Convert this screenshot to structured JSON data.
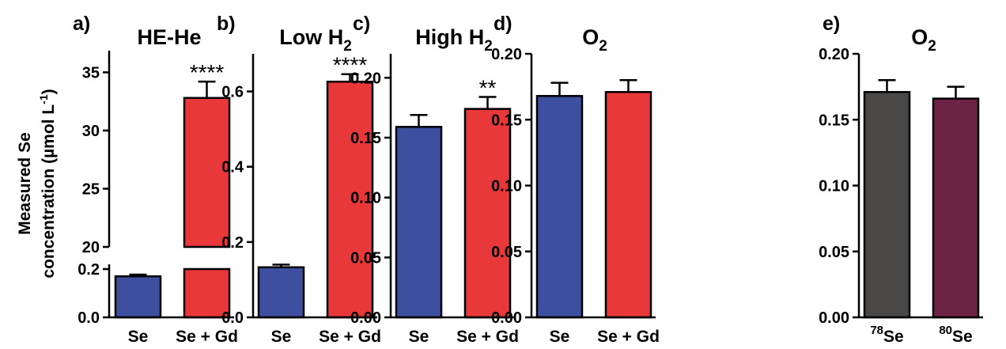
{
  "figure": {
    "ylabel_line1": "Measured Se",
    "ylabel_line2": "concentration (µmol L",
    "ylabel_exp": "-1",
    "ylabel_close": ")"
  },
  "colors": {
    "blue": "#3D4F9E",
    "red": "#E8383A",
    "dark_gray": "#4A4846",
    "maroon": "#6E2345"
  },
  "chart_data": [
    {
      "panel": "a)",
      "title": "HE-He",
      "type": "bar",
      "broken_axis": true,
      "lower_ylim": [
        0,
        0.2
      ],
      "upper_ylim": [
        20,
        37
      ],
      "lower_ticks": [
        "0.0",
        "0.2"
      ],
      "upper_ticks": [
        "20",
        "25",
        "30",
        "35"
      ],
      "categories": [
        "Se",
        "Se + Gd"
      ],
      "values": [
        0.17,
        32.8
      ],
      "errors": [
        0.007,
        1.4
      ],
      "colors": [
        "blue",
        "red"
      ],
      "significance": [
        "",
        "****"
      ]
    },
    {
      "panel": "b)",
      "title": "Low H",
      "title_sub": "2",
      "type": "bar",
      "ylim": [
        0,
        0.7
      ],
      "ticks": [
        "0.0",
        "0.2",
        "0.4",
        "0.6"
      ],
      "categories": [
        "Se",
        "Se + Gd"
      ],
      "values": [
        0.133,
        0.626
      ],
      "errors": [
        0.007,
        0.02
      ],
      "colors": [
        "blue",
        "red"
      ],
      "significance": [
        "",
        "****"
      ]
    },
    {
      "panel": "c)",
      "title": "High H",
      "title_sub": "2",
      "type": "bar",
      "ylim": [
        0,
        0.22
      ],
      "ticks": [
        "0.00",
        "0.05",
        "0.10",
        "0.15",
        "0.20"
      ],
      "categories": [
        "Se",
        "Se + Gd"
      ],
      "values": [
        0.159,
        0.174
      ],
      "errors": [
        0.01,
        0.01
      ],
      "colors": [
        "blue",
        "red"
      ],
      "significance": [
        "",
        "**"
      ]
    },
    {
      "panel": "d)",
      "title": "O",
      "title_sub": "2",
      "type": "bar",
      "ylim": [
        0,
        0.2
      ],
      "ticks": [
        "0.00",
        "0.05",
        "0.10",
        "0.15",
        "0.20"
      ],
      "categories": [
        "Se",
        "Se + Gd"
      ],
      "values": [
        0.168,
        0.171
      ],
      "errors": [
        0.01,
        0.009
      ],
      "colors": [
        "blue",
        "red"
      ],
      "significance": [
        "",
        ""
      ]
    },
    {
      "panel": "e)",
      "title": "O",
      "title_sub": "2",
      "type": "bar",
      "ylim": [
        0,
        0.2
      ],
      "ticks": [
        "0.00",
        "0.05",
        "0.10",
        "0.15",
        "0.20"
      ],
      "categories": [
        "Se",
        "Se"
      ],
      "category_sup": [
        "78",
        "80"
      ],
      "values": [
        0.171,
        0.166
      ],
      "errors": [
        0.009,
        0.009
      ],
      "colors": [
        "dark_gray",
        "maroon"
      ],
      "significance": [
        "",
        ""
      ]
    }
  ]
}
